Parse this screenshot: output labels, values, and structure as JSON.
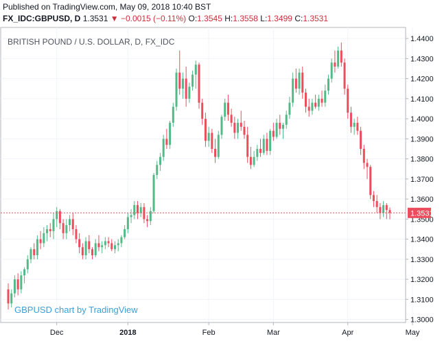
{
  "header": {
    "published": "Published on TradingView.com, May 09, 2018 10:40 BST",
    "symbol": "FX_IDC:GBPUSD, D",
    "last": "1.3531",
    "change": "−0.0015 (−0.11%)",
    "open_label": "O:",
    "open": "1.3545",
    "high_label": "H:",
    "high": "1.3558",
    "low_label": "L:",
    "low": "1.3499",
    "close_label": "C:",
    "close": "1.3531"
  },
  "colors": {
    "up": "#53b987",
    "down": "#eb4d5c",
    "last_price": "#eb4d5c",
    "watermark": "#3d9fd6"
  },
  "chart_data": {
    "type": "candlestick",
    "symbol_label": "BRITISH POUND / U.S. DOLLAR, D, FX_IDC",
    "watermark": "GBPUSD chart by TradingView",
    "ylim": [
      1.2985,
      1.4455
    ],
    "y_ticks": [
      "1.3000",
      "1.3100",
      "1.3200",
      "1.3300",
      "1.3400",
      "1.3500",
      "1.3600",
      "1.3700",
      "1.3800",
      "1.3900",
      "1.4000",
      "1.4100",
      "1.4200",
      "1.4300",
      "1.4400"
    ],
    "x_ticks": [
      {
        "label": "Dec",
        "index": 15,
        "bold": false
      },
      {
        "label": "2018",
        "index": 37,
        "bold": true
      },
      {
        "label": "Feb",
        "index": 62,
        "bold": false
      },
      {
        "label": "Mar",
        "index": 82,
        "bold": false
      },
      {
        "label": "Apr",
        "index": 105,
        "bold": false
      },
      {
        "label": "May",
        "index": 125,
        "bold": false
      }
    ],
    "last_price": "1.3531",
    "last_price_value": 1.3531,
    "ohlc": [
      [
        1.315,
        1.318,
        1.305,
        1.308
      ],
      [
        1.308,
        1.315,
        1.306,
        1.313
      ],
      [
        1.313,
        1.322,
        1.311,
        1.32
      ],
      [
        1.32,
        1.323,
        1.312,
        1.315
      ],
      [
        1.315,
        1.324,
        1.313,
        1.322
      ],
      [
        1.322,
        1.326,
        1.318,
        1.325
      ],
      [
        1.325,
        1.332,
        1.323,
        1.33
      ],
      [
        1.33,
        1.336,
        1.328,
        1.335
      ],
      [
        1.335,
        1.338,
        1.33,
        1.332
      ],
      [
        1.332,
        1.342,
        1.33,
        1.34
      ],
      [
        1.34,
        1.344,
        1.335,
        1.338
      ],
      [
        1.338,
        1.346,
        1.336,
        1.343
      ],
      [
        1.343,
        1.347,
        1.339,
        1.345
      ],
      [
        1.345,
        1.348,
        1.341,
        1.344
      ],
      [
        1.344,
        1.353,
        1.34,
        1.35
      ],
      [
        1.35,
        1.356,
        1.346,
        1.354
      ],
      [
        1.354,
        1.355,
        1.345,
        1.348
      ],
      [
        1.348,
        1.35,
        1.34,
        1.343
      ],
      [
        1.343,
        1.35,
        1.34,
        1.347
      ],
      [
        1.347,
        1.352,
        1.344,
        1.35
      ],
      [
        1.35,
        1.353,
        1.342,
        1.345
      ],
      [
        1.345,
        1.347,
        1.338,
        1.34
      ],
      [
        1.34,
        1.343,
        1.333,
        1.336
      ],
      [
        1.336,
        1.338,
        1.33,
        1.332
      ],
      [
        1.332,
        1.341,
        1.33,
        1.339
      ],
      [
        1.339,
        1.342,
        1.333,
        1.335
      ],
      [
        1.335,
        1.336,
        1.33,
        1.332
      ],
      [
        1.332,
        1.34,
        1.331,
        1.338
      ],
      [
        1.338,
        1.342,
        1.334,
        1.336
      ],
      [
        1.336,
        1.339,
        1.333,
        1.337
      ],
      [
        1.337,
        1.341,
        1.335,
        1.339
      ],
      [
        1.339,
        1.341,
        1.336,
        1.338
      ],
      [
        1.338,
        1.34,
        1.334,
        1.335
      ],
      [
        1.335,
        1.339,
        1.333,
        1.337
      ],
      [
        1.337,
        1.34,
        1.334,
        1.338
      ],
      [
        1.338,
        1.342,
        1.336,
        1.341
      ],
      [
        1.341,
        1.347,
        1.34,
        1.345
      ],
      [
        1.345,
        1.353,
        1.343,
        1.351
      ],
      [
        1.351,
        1.355,
        1.348,
        1.352
      ],
      [
        1.352,
        1.359,
        1.35,
        1.357
      ],
      [
        1.357,
        1.359,
        1.35,
        1.353
      ],
      [
        1.353,
        1.358,
        1.351,
        1.356
      ],
      [
        1.356,
        1.358,
        1.348,
        1.35
      ],
      [
        1.35,
        1.352,
        1.346,
        1.349
      ],
      [
        1.349,
        1.356,
        1.347,
        1.354
      ],
      [
        1.354,
        1.373,
        1.353,
        1.372
      ],
      [
        1.372,
        1.379,
        1.37,
        1.377
      ],
      [
        1.377,
        1.383,
        1.374,
        1.381
      ],
      [
        1.381,
        1.392,
        1.379,
        1.39
      ],
      [
        1.39,
        1.395,
        1.385,
        1.387
      ],
      [
        1.387,
        1.399,
        1.385,
        1.398
      ],
      [
        1.398,
        1.408,
        1.396,
        1.406
      ],
      [
        1.406,
        1.425,
        1.404,
        1.423
      ],
      [
        1.423,
        1.434,
        1.412,
        1.415
      ],
      [
        1.415,
        1.423,
        1.41,
        1.42
      ],
      [
        1.42,
        1.426,
        1.406,
        1.41
      ],
      [
        1.41,
        1.418,
        1.408,
        1.416
      ],
      [
        1.416,
        1.424,
        1.414,
        1.422
      ],
      [
        1.422,
        1.429,
        1.415,
        1.427
      ],
      [
        1.427,
        1.428,
        1.405,
        1.408
      ],
      [
        1.408,
        1.41,
        1.397,
        1.4
      ],
      [
        1.4,
        1.403,
        1.386,
        1.389
      ],
      [
        1.389,
        1.396,
        1.386,
        1.393
      ],
      [
        1.393,
        1.395,
        1.383,
        1.385
      ],
      [
        1.385,
        1.39,
        1.378,
        1.381
      ],
      [
        1.381,
        1.394,
        1.38,
        1.392
      ],
      [
        1.392,
        1.402,
        1.39,
        1.401
      ],
      [
        1.401,
        1.41,
        1.399,
        1.408
      ],
      [
        1.408,
        1.412,
        1.399,
        1.402
      ],
      [
        1.402,
        1.405,
        1.396,
        1.398
      ],
      [
        1.398,
        1.401,
        1.39,
        1.393
      ],
      [
        1.393,
        1.4,
        1.39,
        1.398
      ],
      [
        1.398,
        1.404,
        1.394,
        1.396
      ],
      [
        1.396,
        1.399,
        1.39,
        1.392
      ],
      [
        1.392,
        1.396,
        1.378,
        1.381
      ],
      [
        1.381,
        1.386,
        1.375,
        1.377
      ],
      [
        1.377,
        1.384,
        1.376,
        1.381
      ],
      [
        1.381,
        1.387,
        1.379,
        1.385
      ],
      [
        1.385,
        1.39,
        1.381,
        1.383
      ],
      [
        1.383,
        1.392,
        1.382,
        1.39
      ],
      [
        1.39,
        1.393,
        1.382,
        1.384
      ],
      [
        1.384,
        1.395,
        1.382,
        1.394
      ],
      [
        1.394,
        1.398,
        1.389,
        1.391
      ],
      [
        1.391,
        1.4,
        1.39,
        1.398
      ],
      [
        1.398,
        1.402,
        1.392,
        1.395
      ],
      [
        1.395,
        1.398,
        1.39,
        1.397
      ],
      [
        1.397,
        1.404,
        1.395,
        1.402
      ],
      [
        1.402,
        1.411,
        1.4,
        1.408
      ],
      [
        1.408,
        1.423,
        1.406,
        1.42
      ],
      [
        1.42,
        1.425,
        1.413,
        1.415
      ],
      [
        1.415,
        1.425,
        1.412,
        1.423
      ],
      [
        1.423,
        1.426,
        1.41,
        1.413
      ],
      [
        1.413,
        1.415,
        1.403,
        1.406
      ],
      [
        1.406,
        1.41,
        1.401,
        1.404
      ],
      [
        1.404,
        1.41,
        1.402,
        1.408
      ],
      [
        1.408,
        1.412,
        1.405,
        1.406
      ],
      [
        1.406,
        1.412,
        1.404,
        1.41
      ],
      [
        1.41,
        1.414,
        1.406,
        1.408
      ],
      [
        1.408,
        1.417,
        1.406,
        1.414
      ],
      [
        1.414,
        1.422,
        1.412,
        1.42
      ],
      [
        1.42,
        1.43,
        1.418,
        1.428
      ],
      [
        1.428,
        1.434,
        1.423,
        1.426
      ],
      [
        1.426,
        1.436,
        1.425,
        1.434
      ],
      [
        1.434,
        1.438,
        1.426,
        1.428
      ],
      [
        1.428,
        1.43,
        1.412,
        1.415
      ],
      [
        1.415,
        1.417,
        1.4,
        1.403
      ],
      [
        1.403,
        1.406,
        1.393,
        1.396
      ],
      [
        1.396,
        1.4,
        1.392,
        1.398
      ],
      [
        1.398,
        1.401,
        1.392,
        1.394
      ],
      [
        1.394,
        1.396,
        1.382,
        1.385
      ],
      [
        1.385,
        1.387,
        1.375,
        1.378
      ],
      [
        1.378,
        1.38,
        1.37,
        1.376
      ],
      [
        1.376,
        1.377,
        1.36,
        1.362
      ],
      [
        1.362,
        1.364,
        1.356,
        1.359
      ],
      [
        1.359,
        1.362,
        1.353,
        1.356
      ],
      [
        1.356,
        1.358,
        1.35,
        1.353
      ],
      [
        1.353,
        1.359,
        1.351,
        1.357
      ],
      [
        1.357,
        1.358,
        1.35,
        1.3545
      ],
      [
        1.3545,
        1.3558,
        1.3499,
        1.3531
      ]
    ]
  }
}
